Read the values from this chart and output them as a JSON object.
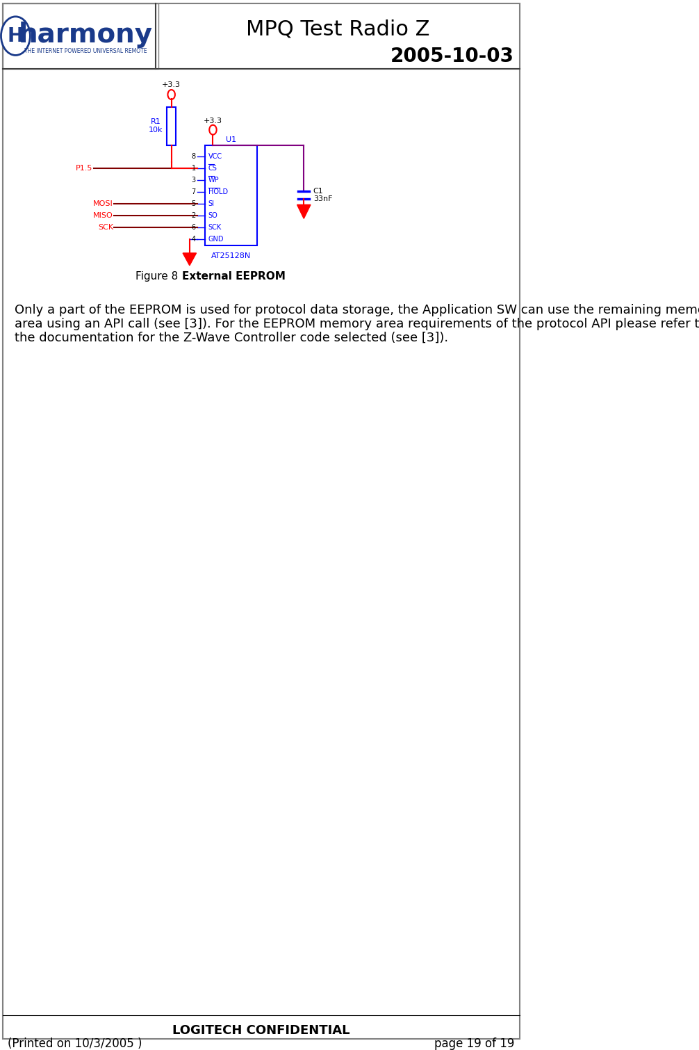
{
  "title": "MPQ Test Radio Z",
  "date": "2005-10-03",
  "body_line1": "Only a part of the EEPROM is used for protocol data storage, the Application SW can use the remaining memory",
  "body_line2": "area using an API call (see [3]). For the EEPROM memory area requirements of the protocol API please refer to",
  "body_line3": "the documentation for the Z-Wave Controller code selected (see [3]).",
  "footer_center": "LOGITECH CONFIDENTIAL",
  "footer_left": "(Printed on 10/3/2005 )",
  "footer_right": "page 19 of 19",
  "bg_color": "#ffffff",
  "border_color": "#808080",
  "header_line_color": "#404040",
  "title_font_size": 22,
  "date_font_size": 20,
  "body_font_size": 13,
  "footer_font_size": 12
}
